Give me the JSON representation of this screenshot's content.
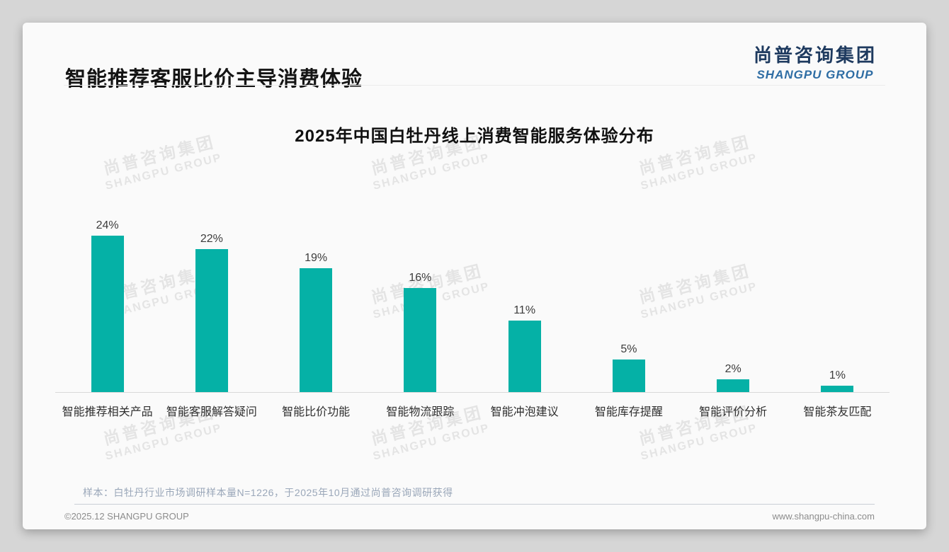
{
  "page": {
    "header": {
      "title": "智能推荐客服比价主导消费体验",
      "logo": {
        "cn": "尚普咨询集团",
        "en": "SHANGPU GROUP"
      }
    },
    "watermark": {
      "line1": "尚普咨询集团",
      "line2": "SHANGPU GROUP"
    },
    "footer": {
      "note": "样本：白牡丹行业市场调研样本量N=1226，于2025年10月通过尚普咨询调研获得",
      "copyright": "©2025.12 SHANGPU GROUP",
      "website": "www.shangpu-china.com"
    }
  },
  "chart_data": {
    "type": "bar",
    "title": "2025年中国白牡丹线上消费智能服务体验分布",
    "categories": [
      "智能推荐相关产品",
      "智能客服解答疑问",
      "智能比价功能",
      "智能物流跟踪",
      "智能冲泡建议",
      "智能库存提醒",
      "智能评价分析",
      "智能茶友匹配"
    ],
    "values": [
      24,
      22,
      19,
      16,
      11,
      5,
      2,
      1
    ],
    "value_labels": [
      "24%",
      "22%",
      "19%",
      "16%",
      "11%",
      "5%",
      "2%",
      "1%"
    ],
    "unit": "%",
    "bar_color": "#05b1a6",
    "label_color": "#3c3c3c",
    "axis_color": "#d9d9d9",
    "ylim": [
      0,
      26
    ],
    "grid": false,
    "legend": false
  }
}
